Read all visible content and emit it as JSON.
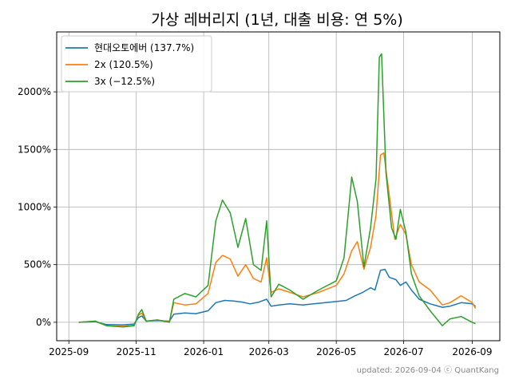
{
  "chart_data": {
    "type": "line",
    "title": "가상 레버리지 (1년, 대출 비용: 연 5%)",
    "xlabel": "",
    "ylabel": "",
    "x_ticks": [
      "2025-09",
      "2025-11",
      "2026-01",
      "2026-03",
      "2026-05",
      "2026-07",
      "2026-09"
    ],
    "y_ticks": [
      "0%",
      "500%",
      "1000%",
      "1500%",
      "2000%"
    ],
    "ylim": [
      -160,
      2520
    ],
    "xlim": [
      "2025-08-21",
      "2026-09-26"
    ],
    "grid": true,
    "legend_position": "top-left",
    "series": [
      {
        "name": "현대오토에버 (137.7%)",
        "color": "#1f77b4",
        "points": [
          [
            "2025-09-10",
            0
          ],
          [
            "2025-09-25",
            5
          ],
          [
            "2025-10-05",
            -20
          ],
          [
            "2025-10-20",
            -22
          ],
          [
            "2025-10-30",
            -15
          ],
          [
            "2025-11-03",
            40
          ],
          [
            "2025-11-06",
            55
          ],
          [
            "2025-11-10",
            10
          ],
          [
            "2025-11-20",
            15
          ],
          [
            "2025-12-01",
            10
          ],
          [
            "2025-12-05",
            70
          ],
          [
            "2025-12-15",
            80
          ],
          [
            "2025-12-25",
            75
          ],
          [
            "2026-01-05",
            100
          ],
          [
            "2026-01-12",
            170
          ],
          [
            "2026-01-20",
            190
          ],
          [
            "2026-01-28",
            185
          ],
          [
            "2026-02-05",
            175
          ],
          [
            "2026-02-12",
            160
          ],
          [
            "2026-02-20",
            175
          ],
          [
            "2026-02-27",
            200
          ],
          [
            "2026-03-03",
            140
          ],
          [
            "2026-03-10",
            150
          ],
          [
            "2026-03-20",
            160
          ],
          [
            "2026-04-01",
            150
          ],
          [
            "2026-04-15",
            165
          ],
          [
            "2026-05-01",
            180
          ],
          [
            "2026-05-10",
            190
          ],
          [
            "2026-05-18",
            230
          ],
          [
            "2026-05-25",
            260
          ],
          [
            "2026-06-01",
            300
          ],
          [
            "2026-06-05",
            280
          ],
          [
            "2026-06-10",
            450
          ],
          [
            "2026-06-14",
            460
          ],
          [
            "2026-06-18",
            390
          ],
          [
            "2026-06-24",
            370
          ],
          [
            "2026-06-28",
            320
          ],
          [
            "2026-07-03",
            350
          ],
          [
            "2026-07-08",
            280
          ],
          [
            "2026-07-15",
            200
          ],
          [
            "2026-07-25",
            160
          ],
          [
            "2026-08-05",
            130
          ],
          [
            "2026-08-12",
            140
          ],
          [
            "2026-08-22",
            170
          ],
          [
            "2026-09-01",
            160
          ],
          [
            "2026-09-04",
            137.7
          ]
        ]
      },
      {
        "name": "2x (120.5%)",
        "color": "#ff7f0e",
        "points": [
          [
            "2025-09-10",
            0
          ],
          [
            "2025-09-25",
            10
          ],
          [
            "2025-10-05",
            -30
          ],
          [
            "2025-10-20",
            -35
          ],
          [
            "2025-10-30",
            -25
          ],
          [
            "2025-11-03",
            60
          ],
          [
            "2025-11-06",
            80
          ],
          [
            "2025-11-10",
            10
          ],
          [
            "2025-11-20",
            20
          ],
          [
            "2025-12-01",
            5
          ],
          [
            "2025-12-05",
            170
          ],
          [
            "2025-12-15",
            150
          ],
          [
            "2025-12-25",
            160
          ],
          [
            "2026-01-05",
            250
          ],
          [
            "2026-01-12",
            520
          ],
          [
            "2026-01-18",
            580
          ],
          [
            "2026-01-25",
            550
          ],
          [
            "2026-02-01",
            400
          ],
          [
            "2026-02-08",
            500
          ],
          [
            "2026-02-15",
            380
          ],
          [
            "2026-02-22",
            350
          ],
          [
            "2026-02-27",
            560
          ],
          [
            "2026-03-03",
            260
          ],
          [
            "2026-03-10",
            290
          ],
          [
            "2026-03-20",
            260
          ],
          [
            "2026-04-01",
            220
          ],
          [
            "2026-04-15",
            260
          ],
          [
            "2026-05-01",
            320
          ],
          [
            "2026-05-08",
            420
          ],
          [
            "2026-05-15",
            620
          ],
          [
            "2026-05-20",
            700
          ],
          [
            "2026-05-26",
            460
          ],
          [
            "2026-06-01",
            650
          ],
          [
            "2026-06-06",
            930
          ],
          [
            "2026-06-10",
            1450
          ],
          [
            "2026-06-13",
            1470
          ],
          [
            "2026-06-18",
            1100
          ],
          [
            "2026-06-23",
            720
          ],
          [
            "2026-06-28",
            850
          ],
          [
            "2026-07-03",
            760
          ],
          [
            "2026-07-08",
            500
          ],
          [
            "2026-07-15",
            350
          ],
          [
            "2026-07-25",
            280
          ],
          [
            "2026-08-05",
            150
          ],
          [
            "2026-08-12",
            170
          ],
          [
            "2026-08-22",
            230
          ],
          [
            "2026-09-01",
            170
          ],
          [
            "2026-09-04",
            120.5
          ]
        ]
      },
      {
        "name": "3x (−12.5%)",
        "color": "#2ca02c",
        "points": [
          [
            "2025-09-10",
            0
          ],
          [
            "2025-09-25",
            10
          ],
          [
            "2025-10-05",
            -30
          ],
          [
            "2025-10-20",
            -40
          ],
          [
            "2025-10-30",
            -30
          ],
          [
            "2025-11-03",
            70
          ],
          [
            "2025-11-06",
            110
          ],
          [
            "2025-11-10",
            10
          ],
          [
            "2025-11-20",
            20
          ],
          [
            "2025-12-01",
            0
          ],
          [
            "2025-12-05",
            200
          ],
          [
            "2025-12-15",
            250
          ],
          [
            "2025-12-25",
            220
          ],
          [
            "2026-01-05",
            320
          ],
          [
            "2026-01-12",
            880
          ],
          [
            "2026-01-18",
            1060
          ],
          [
            "2026-01-25",
            950
          ],
          [
            "2026-02-01",
            650
          ],
          [
            "2026-02-08",
            900
          ],
          [
            "2026-02-15",
            500
          ],
          [
            "2026-02-22",
            450
          ],
          [
            "2026-02-27",
            880
          ],
          [
            "2026-03-03",
            220
          ],
          [
            "2026-03-10",
            330
          ],
          [
            "2026-03-20",
            280
          ],
          [
            "2026-04-01",
            200
          ],
          [
            "2026-04-15",
            280
          ],
          [
            "2026-05-01",
            360
          ],
          [
            "2026-05-08",
            560
          ],
          [
            "2026-05-15",
            1260
          ],
          [
            "2026-05-20",
            1050
          ],
          [
            "2026-05-26",
            480
          ],
          [
            "2026-06-01",
            820
          ],
          [
            "2026-06-06",
            1250
          ],
          [
            "2026-06-09",
            2300
          ],
          [
            "2026-06-11",
            2330
          ],
          [
            "2026-06-15",
            1300
          ],
          [
            "2026-06-20",
            820
          ],
          [
            "2026-06-24",
            720
          ],
          [
            "2026-06-28",
            980
          ],
          [
            "2026-07-03",
            780
          ],
          [
            "2026-07-08",
            420
          ],
          [
            "2026-07-15",
            230
          ],
          [
            "2026-07-25",
            100
          ],
          [
            "2026-08-05",
            -30
          ],
          [
            "2026-08-12",
            30
          ],
          [
            "2026-08-22",
            50
          ],
          [
            "2026-09-01",
            0
          ],
          [
            "2026-09-04",
            -12.5
          ]
        ]
      }
    ]
  },
  "footer": {
    "credit": "updated: 2026-09-04 ⓒ QuantKang"
  }
}
